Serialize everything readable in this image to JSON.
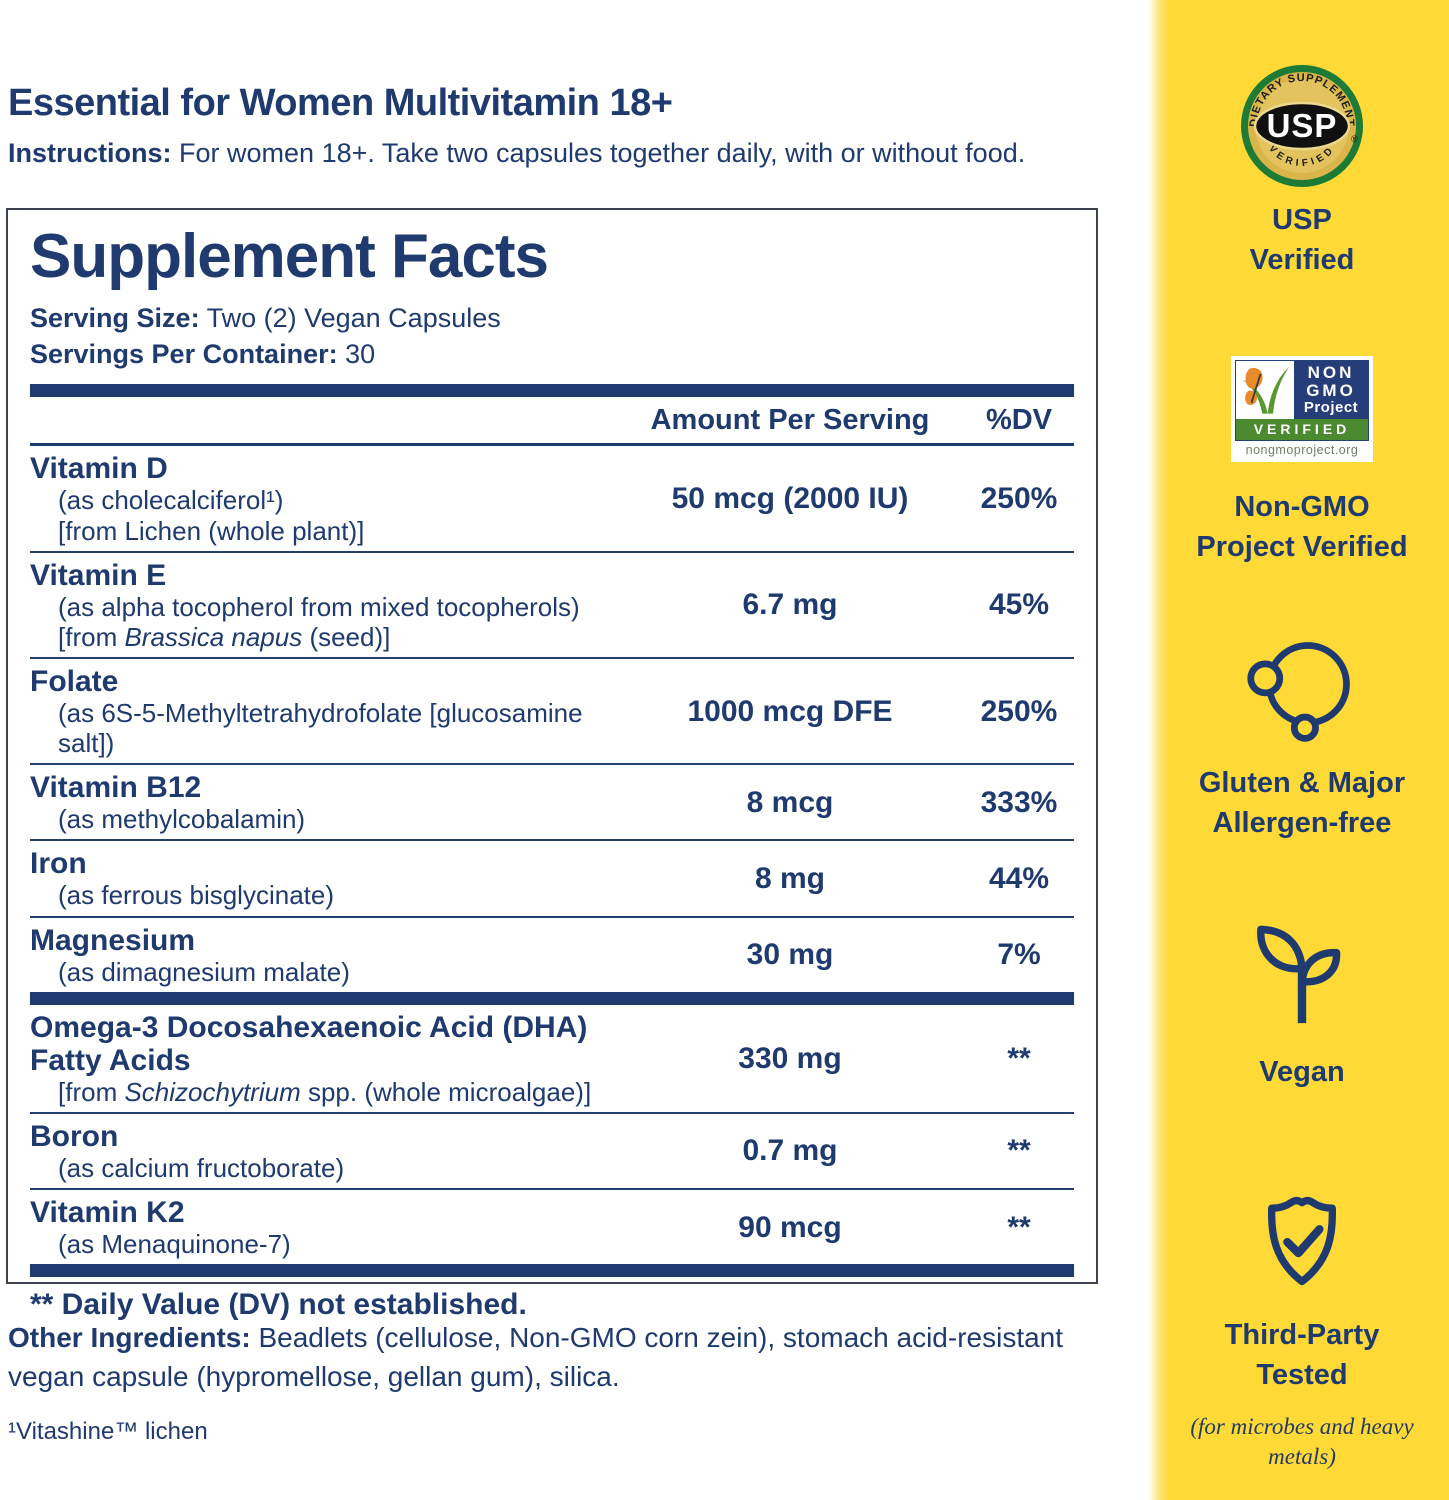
{
  "colors": {
    "navy": "#1e3a6e",
    "yellow": "#ffd935",
    "seal_green": "#1e7b35",
    "seal_gold": "#d9b54a",
    "badge_green": "#4c8a2f",
    "butterfly_orange": "#e98a2b"
  },
  "header": {
    "title": "Essential for Women Multivitamin 18+",
    "instructions_label": "Instructions:",
    "instructions_text": "For women 18+. Take two capsules together daily, with or without food."
  },
  "panel": {
    "title": "Supplement Facts",
    "serving_size_label": "Serving Size:",
    "serving_size_value": "Two (2) Vegan Capsules",
    "servings_label": "Servings Per Container:",
    "servings_value": "30",
    "columns": {
      "amount": "Amount Per Serving",
      "dv": "%DV"
    },
    "rows": [
      {
        "name": "Vitamin D",
        "sublines": [
          [
            {
              "t": "(as cholecalciferol¹)"
            }
          ],
          [
            {
              "t": "[from Lichen (whole plant)]"
            }
          ]
        ],
        "amount": "50 mcg (2000 IU)",
        "dv": "250%"
      },
      {
        "name": "Vitamin E",
        "sublines": [
          [
            {
              "t": "(as alpha tocopherol from mixed tocopherols)"
            }
          ],
          [
            {
              "t": "[from "
            },
            {
              "t": "Brassica napus",
              "i": true
            },
            {
              "t": " (seed)]"
            }
          ]
        ],
        "amount": "6.7 mg",
        "dv": "45%"
      },
      {
        "name": "Folate",
        "sublines": [
          [
            {
              "t": "(as 6S-5-Methyltetrahydrofolate [glucosamine salt])"
            }
          ]
        ],
        "amount": "1000 mcg DFE",
        "dv": "250%"
      },
      {
        "name": "Vitamin B12",
        "sublines": [
          [
            {
              "t": "(as methylcobalamin)"
            }
          ]
        ],
        "amount": "8 mcg",
        "dv": "333%"
      },
      {
        "name": "Iron",
        "sublines": [
          [
            {
              "t": "(as ferrous bisglycinate)"
            }
          ]
        ],
        "amount": "8 mg",
        "dv": "44%"
      },
      {
        "name": "Magnesium",
        "sublines": [
          [
            {
              "t": "(as dimagnesium malate)"
            }
          ]
        ],
        "amount": "30 mg",
        "dv": "7%"
      },
      {
        "name": "Omega-3 Docosahexaenoic Acid (DHA) Fatty Acids",
        "thick_before": true,
        "sublines": [
          [
            {
              "t": "[from "
            },
            {
              "t": "Schizochytrium",
              "i": true
            },
            {
              "t": " spp. (whole microalgae)]"
            }
          ]
        ],
        "amount": "330 mg",
        "dv": "**"
      },
      {
        "name": "Boron",
        "sublines": [
          [
            {
              "t": "(as calcium fructoborate)"
            }
          ]
        ],
        "amount": "0.7 mg",
        "dv": "**"
      },
      {
        "name": "Vitamin K2",
        "sublines": [
          [
            {
              "t": "(as Menaquinone-7)"
            }
          ]
        ],
        "amount": "90 mcg",
        "dv": "**"
      }
    ],
    "footnote": "** Daily Value (DV) not established."
  },
  "other_ingredients": {
    "label": "Other Ingredients:",
    "text": "Beadlets (cellulose, Non-GMO corn zein), stomach acid-resistant vegan capsule (hypromellose, gellan gum), silica."
  },
  "source_note": "¹Vitashine™ lichen",
  "sidebar": {
    "usp": {
      "seal_top": "DIETARY SUPPLEMENT",
      "seal_center": "USP",
      "seal_bottom": "VERIFIED",
      "seal_reg": "®",
      "label": "USP\nVerified"
    },
    "non_gmo": {
      "badge_line1": "NON",
      "badge_line2": "GMO",
      "badge_line3": "Project",
      "badge_verified": "VERIFIED",
      "badge_url": "nongmoproject.org",
      "label": "Non-GMO\nProject Verified"
    },
    "gluten": {
      "label": "Gluten & Major\nAllergen-free"
    },
    "vegan": {
      "label": "Vegan"
    },
    "third_party": {
      "label": "Third-Party\nTested",
      "caption": "(for microbes and\nheavy metals)"
    }
  }
}
